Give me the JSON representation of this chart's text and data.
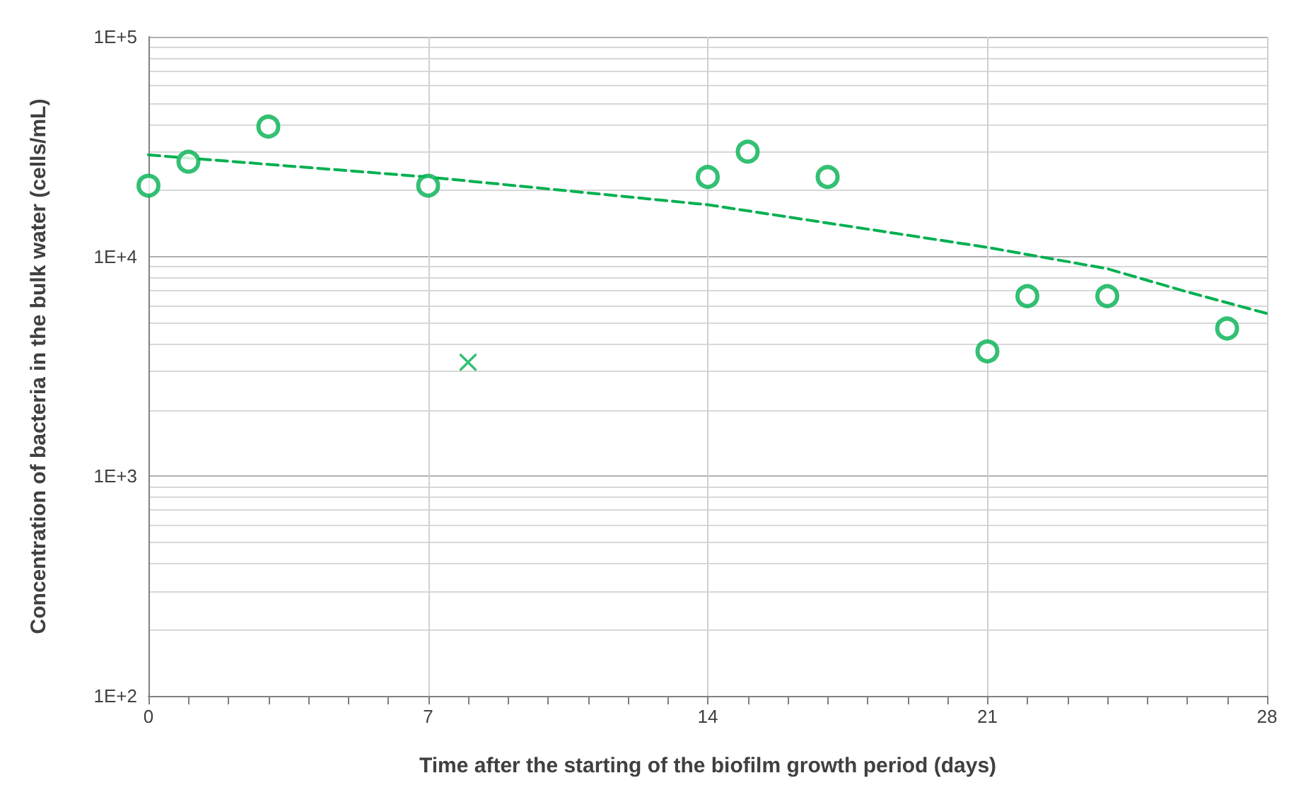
{
  "chart_data": {
    "type": "scatter",
    "xlabel": "Time after the starting of the biofilm growth period (days)",
    "ylabel": "Concentration of bacteria in the bulk water (cells/mL)",
    "xlim": [
      0,
      28
    ],
    "xticks": [
      0,
      7,
      14,
      21,
      28
    ],
    "ylim": [
      100,
      100000
    ],
    "yticks": [
      {
        "value": 100,
        "label": "1E+2"
      },
      {
        "value": 1000,
        "label": "1E+3"
      },
      {
        "value": 10000,
        "label": "1E+4"
      },
      {
        "value": 100000,
        "label": "1E+5"
      }
    ],
    "log": "y",
    "grid": true,
    "series": [
      {
        "marker": "circle",
        "color": "#00b050",
        "x": [
          0,
          1,
          3,
          7,
          14,
          15,
          17,
          21,
          22,
          24,
          27
        ],
        "values": [
          21000,
          27000,
          39000,
          21000,
          23000,
          30000,
          23000,
          3700,
          6600,
          6600,
          4700
        ]
      },
      {
        "marker": "cross",
        "color": "#00b050",
        "x": [
          8
        ],
        "values": [
          3300
        ]
      },
      {
        "type": "line",
        "line_style": "dashed",
        "marker": "none",
        "color": "#00b050",
        "x": [
          0,
          7,
          14,
          21,
          24,
          26,
          28
        ],
        "values": [
          29000,
          23000,
          17200,
          11000,
          8800,
          6900,
          5500
        ]
      }
    ]
  }
}
